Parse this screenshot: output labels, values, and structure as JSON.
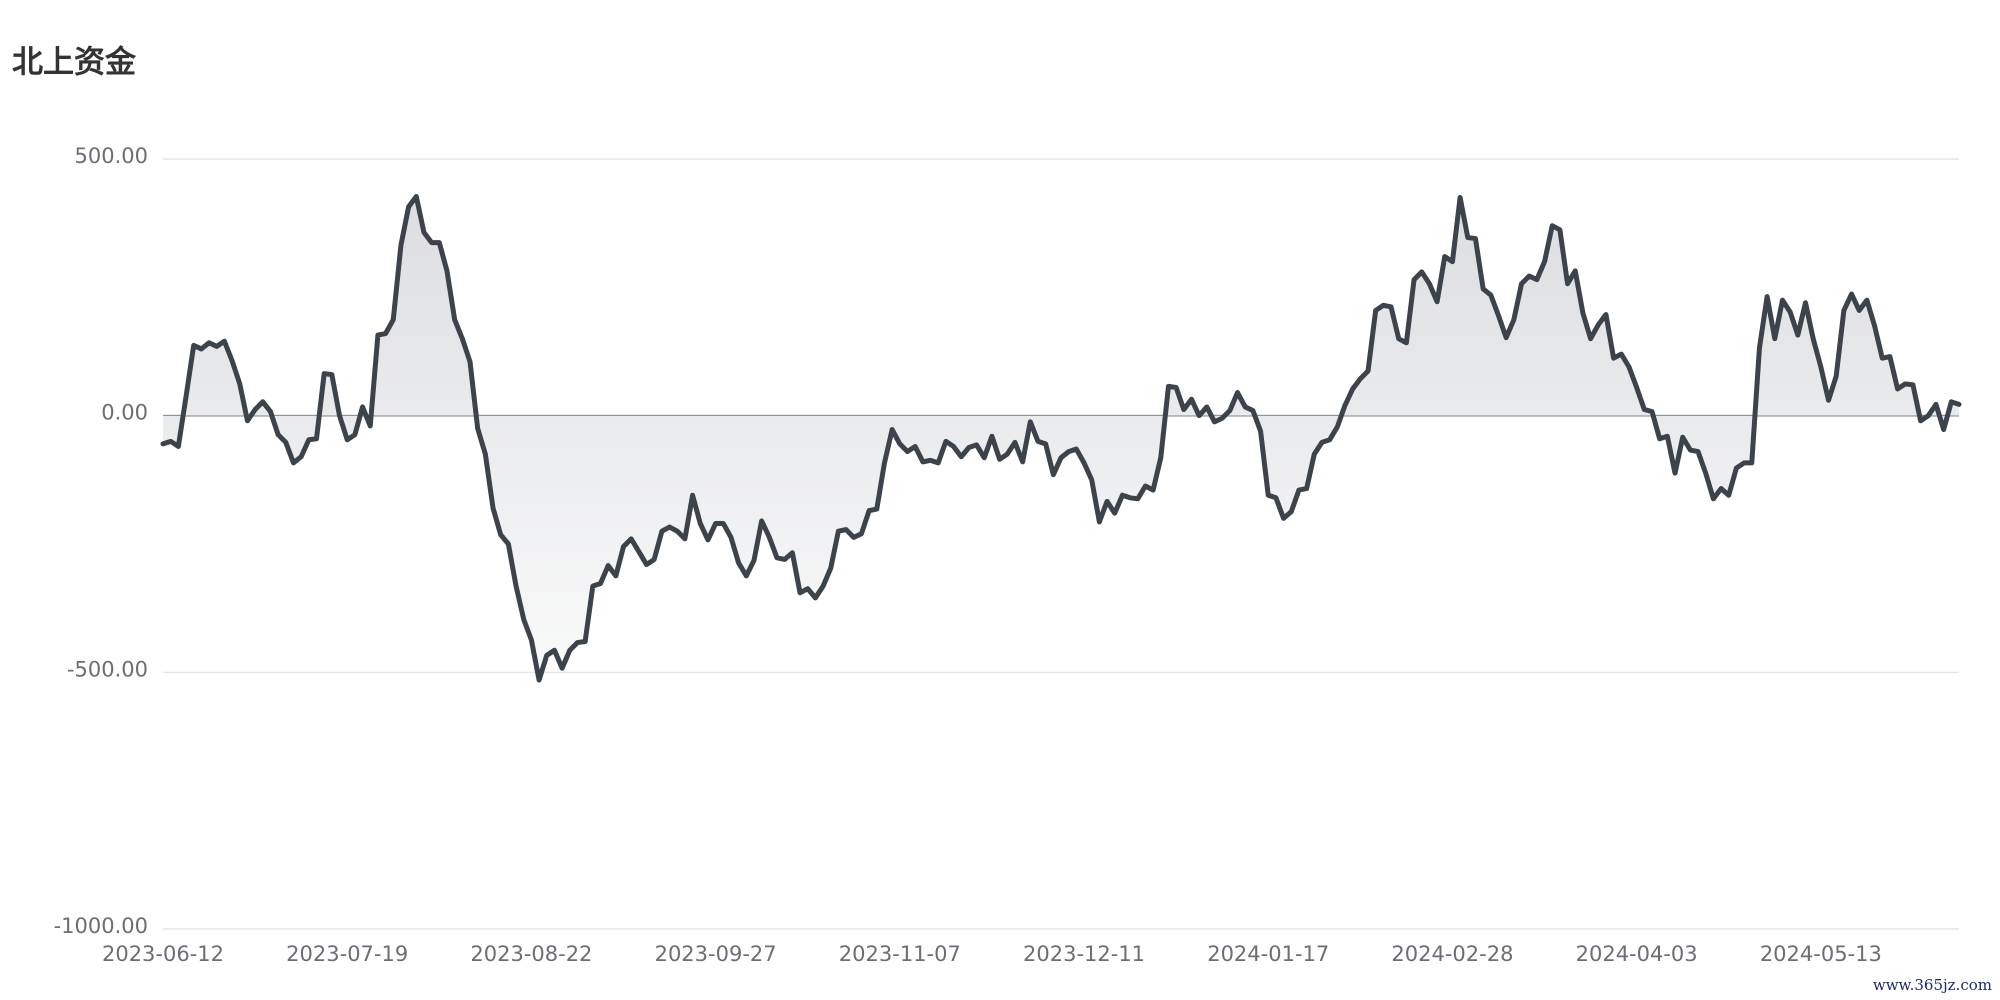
{
  "chart_data": {
    "type": "area",
    "title": "北上资金",
    "watermark": "www.365jz.com",
    "color": "#3d434b",
    "grid": true,
    "zero_line": true,
    "ylim": [
      -1000,
      500
    ],
    "yticks": [
      {
        "value": 500,
        "label": "500.00"
      },
      {
        "value": 0,
        "label": "0.00"
      },
      {
        "value": -500,
        "label": "-500.00"
      },
      {
        "value": -1000,
        "label": "-1000.00"
      }
    ],
    "categories": [
      "2023-06-12",
      null,
      null,
      null,
      null,
      null,
      null,
      null,
      null,
      null,
      null,
      null,
      null,
      null,
      null,
      null,
      null,
      null,
      null,
      null,
      null,
      null,
      null,
      null,
      "2023-07-19",
      null,
      null,
      null,
      null,
      null,
      null,
      null,
      null,
      null,
      null,
      null,
      null,
      null,
      null,
      null,
      null,
      null,
      null,
      null,
      null,
      null,
      null,
      null,
      "2023-08-22",
      null,
      null,
      null,
      null,
      null,
      null,
      null,
      null,
      null,
      null,
      null,
      null,
      null,
      null,
      null,
      null,
      null,
      null,
      null,
      null,
      null,
      null,
      null,
      "2023-09-27",
      null,
      null,
      null,
      null,
      null,
      null,
      null,
      null,
      null,
      null,
      null,
      null,
      null,
      null,
      null,
      null,
      null,
      null,
      null,
      null,
      null,
      null,
      null,
      "2023-11-07",
      null,
      null,
      null,
      null,
      null,
      null,
      null,
      null,
      null,
      null,
      null,
      null,
      null,
      null,
      null,
      null,
      null,
      null,
      null,
      null,
      null,
      null,
      null,
      "2023-12-11",
      null,
      null,
      null,
      null,
      null,
      null,
      null,
      null,
      null,
      null,
      null,
      null,
      null,
      null,
      null,
      null,
      null,
      null,
      null,
      null,
      null,
      null,
      null,
      "2024-01-17",
      null,
      null,
      null,
      null,
      null,
      null,
      null,
      null,
      null,
      null,
      null,
      null,
      null,
      null,
      null,
      null,
      null,
      null,
      null,
      null,
      null,
      null,
      null,
      "2024-02-28",
      null,
      null,
      null,
      null,
      null,
      null,
      null,
      null,
      null,
      null,
      null,
      null,
      null,
      null,
      null,
      null,
      null,
      null,
      null,
      null,
      null,
      null,
      null,
      "2024-04-03",
      null,
      null,
      null,
      null,
      null,
      null,
      null,
      null,
      null,
      null,
      null,
      null,
      null,
      null,
      null,
      null,
      null,
      null,
      null,
      null,
      null,
      null,
      null,
      "2024-05-13",
      null,
      null,
      null,
      null,
      null,
      null,
      null,
      null,
      null,
      null,
      null,
      null,
      null,
      null,
      null,
      null,
      null,
      null
    ],
    "values": [
      -55,
      -50,
      -60,
      37,
      137,
      130,
      142,
      135,
      145,
      107,
      62,
      -10,
      12,
      27,
      8,
      -37,
      -52,
      -92,
      -80,
      -47,
      -45,
      82,
      80,
      0,
      -47,
      -37,
      17,
      -20,
      157,
      160,
      187,
      332,
      407,
      427,
      357,
      337,
      337,
      282,
      187,
      150,
      105,
      -25,
      -75,
      -180,
      -232,
      -250,
      -332,
      -397,
      -437,
      -515,
      -467,
      -457,
      -492,
      -457,
      -442,
      -440,
      -332,
      -327,
      -292,
      -312,
      -255,
      -240,
      -265,
      -290,
      -280,
      -225,
      -217,
      -225,
      -240,
      -155,
      -210,
      -242,
      -210,
      -210,
      -237,
      -287,
      -312,
      -282,
      -205,
      -237,
      -277,
      -280,
      -267,
      -345,
      -337,
      -355,
      -332,
      -297,
      -225,
      -222,
      -237,
      -230,
      -185,
      -182,
      -92,
      -27,
      -55,
      -70,
      -60,
      -90,
      -87,
      -92,
      -50,
      -60,
      -80,
      -62,
      -57,
      -82,
      -40,
      -85,
      -75,
      -52,
      -90,
      -12,
      -50,
      -55,
      -115,
      -82,
      -70,
      -65,
      -92,
      -125,
      -207,
      -167,
      -190,
      -155,
      -160,
      -162,
      -137,
      -145,
      -82,
      57,
      55,
      12,
      32,
      0,
      17,
      -12,
      -5,
      10,
      45,
      17,
      10,
      -30,
      -155,
      -160,
      -200,
      -187,
      -145,
      -142,
      -75,
      -52,
      -47,
      -22,
      20,
      52,
      72,
      87,
      205,
      215,
      212,
      150,
      142,
      265,
      280,
      257,
      222,
      310,
      300,
      425,
      347,
      345,
      247,
      235,
      195,
      152,
      187,
      257,
      272,
      265,
      300,
      370,
      362,
      257,
      282,
      200,
      150,
      177,
      197,
      112,
      120,
      95,
      55,
      12,
      8,
      -45,
      -40,
      -112,
      -42,
      -67,
      -70,
      -112,
      -162,
      -142,
      -155,
      -102,
      -92,
      -92,
      132,
      232,
      150,
      225,
      202,
      157,
      220,
      150,
      95,
      30,
      77,
      205,
      237,
      205,
      225,
      175,
      112,
      115,
      52,
      62,
      60,
      -10,
      0,
      22,
      -27,
      27,
      22
    ]
  }
}
